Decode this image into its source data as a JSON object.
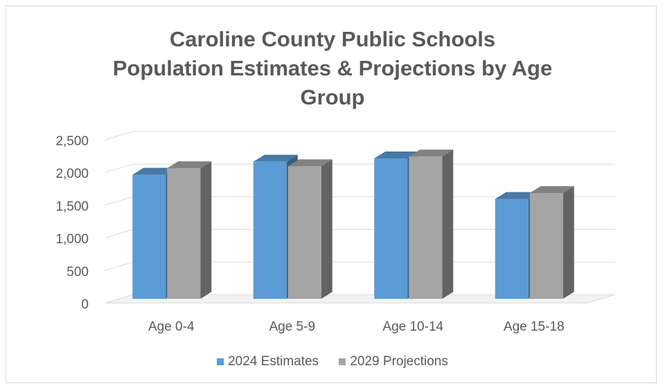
{
  "chart_data": {
    "type": "bar",
    "title_lines": [
      "Caroline County Public Schools",
      "Population Estimates & Projections by Age",
      "Group"
    ],
    "categories": [
      "Age 0-4",
      "Age 5-9",
      "Age 10-14",
      "Age 15-18"
    ],
    "series": [
      {
        "name": "2024 Estimates",
        "values": [
          1900,
          2100,
          2150,
          1530
        ],
        "color": "#5b9bd5"
      },
      {
        "name": "2029 Projections",
        "values": [
          2000,
          2030,
          2180,
          1620
        ],
        "color": "#a5a5a5"
      }
    ],
    "yticks": [
      "0",
      "500",
      "1,000",
      "1,500",
      "2,000",
      "2,500"
    ],
    "ylim": [
      0,
      2500
    ],
    "grid": true,
    "legend_position": "bottom"
  }
}
